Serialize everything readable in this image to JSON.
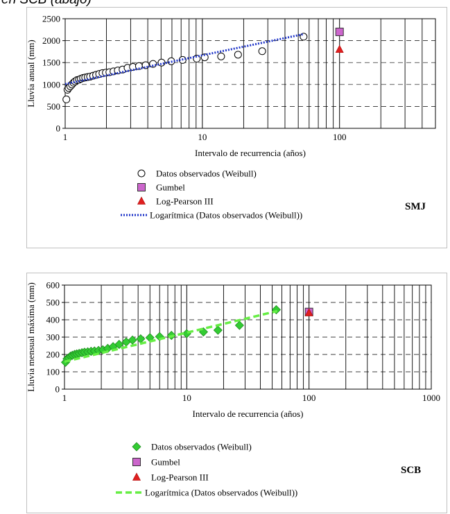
{
  "caption": "en SCB (abajo)",
  "chart_data": [
    {
      "type": "scatter",
      "station": "SMJ",
      "xlabel": "Intervalo de recurrencia (años)",
      "ylabel": "Lluvia anual (mm)",
      "xscale": "log",
      "xlim": [
        1,
        500
      ],
      "ylim": [
        0,
        2500
      ],
      "xticks": [
        "1",
        "10",
        "100"
      ],
      "yticks": [
        "0",
        "500",
        "1000",
        "1500",
        "2000",
        "2500"
      ],
      "grid": "log x vertical lines, dashed horizontal lines",
      "legend_position": "bottom",
      "series": [
        {
          "name": "Datos observados (Weibull)",
          "marker": "circle",
          "x": [
            1.02,
            1.04,
            1.06,
            1.09,
            1.12,
            1.15,
            1.18,
            1.22,
            1.26,
            1.3,
            1.35,
            1.4,
            1.46,
            1.52,
            1.6,
            1.68,
            1.77,
            1.87,
            1.98,
            2.1,
            2.25,
            2.42,
            2.62,
            2.85,
            3.12,
            3.45,
            3.86,
            4.37,
            5.04,
            5.93,
            7.18,
            9.1,
            10.4,
            13.7,
            18.2,
            27.3,
            54.7
          ],
          "y": [
            660,
            880,
            920,
            960,
            1000,
            1040,
            1070,
            1100,
            1110,
            1130,
            1150,
            1160,
            1170,
            1180,
            1200,
            1220,
            1240,
            1260,
            1270,
            1280,
            1300,
            1320,
            1340,
            1380,
            1400,
            1420,
            1440,
            1470,
            1500,
            1530,
            1560,
            1590,
            1620,
            1640,
            1680,
            1760,
            2090
          ]
        },
        {
          "name": "Gumbel",
          "marker": "square",
          "color": "#cc66cc",
          "x": [
            100
          ],
          "y": [
            2200
          ]
        },
        {
          "name": "Log-Pearson III",
          "marker": "triangle",
          "color": "#e02020",
          "x": [
            100
          ],
          "y": [
            1800
          ]
        },
        {
          "name": "Logarítmica (Datos observados (Weibull))",
          "line": "dotted",
          "color": "#1f35c8",
          "x": [
            1,
            55
          ],
          "y": [
            1010,
            2150
          ]
        }
      ],
      "label": "SMJ"
    },
    {
      "type": "scatter",
      "station": "SCB",
      "xlabel": "Intervalo de recurrencia (años)",
      "ylabel": "Lluvia mensual máxima (mm)",
      "xscale": "log",
      "xlim": [
        1,
        1000
      ],
      "ylim": [
        0,
        600
      ],
      "xticks": [
        "1",
        "10",
        "100",
        "1000"
      ],
      "yticks": [
        "0",
        "100",
        "200",
        "300",
        "400",
        "500",
        "600"
      ],
      "grid": "log x vertical lines, dashed horizontal lines",
      "legend_position": "bottom",
      "series": [
        {
          "name": "Datos observados (Weibull)",
          "marker": "diamond",
          "color": "#33cc33",
          "x": [
            1.02,
            1.05,
            1.08,
            1.12,
            1.16,
            1.21,
            1.26,
            1.32,
            1.39,
            1.46,
            1.55,
            1.65,
            1.76,
            1.9,
            2.06,
            2.26,
            2.5,
            2.8,
            3.2,
            3.6,
            4.2,
            5.0,
            6.0,
            7.5,
            10.0,
            13.7,
            18.0,
            27.0,
            54.0
          ],
          "y": [
            155,
            175,
            180,
            190,
            195,
            200,
            203,
            206,
            210,
            213,
            215,
            218,
            220,
            223,
            227,
            235,
            245,
            258,
            272,
            283,
            290,
            297,
            303,
            310,
            320,
            330,
            340,
            368,
            458
          ]
        },
        {
          "name": "Gumbel",
          "marker": "square",
          "color": "#cc66cc",
          "x": [
            100
          ],
          "y": [
            445
          ]
        },
        {
          "name": "Log-Pearson III",
          "marker": "triangle",
          "color": "#e02020",
          "x": [
            100
          ],
          "y": [
            440
          ]
        },
        {
          "name": "Logarítmica (Datos observados (Weibull))",
          "line": "dashed",
          "color": "#66ee44",
          "x": [
            1,
            55
          ],
          "y": [
            158,
            450
          ]
        }
      ],
      "label": "SCB"
    }
  ]
}
